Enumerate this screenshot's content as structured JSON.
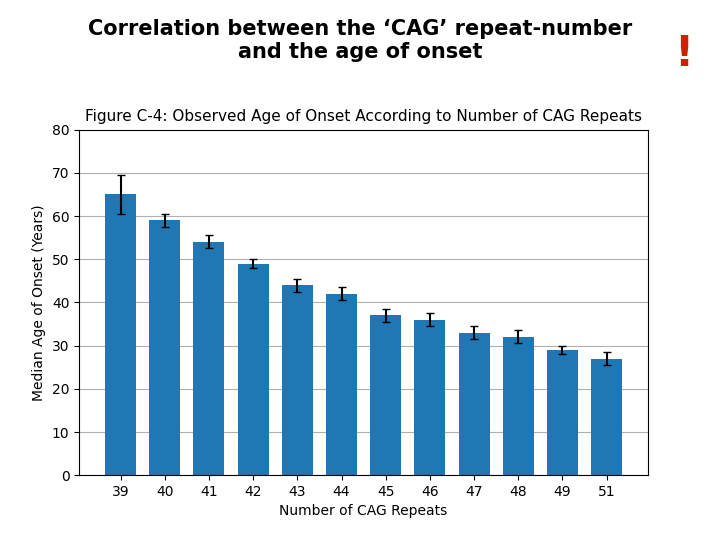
{
  "chart_data": {
    "type": "bar",
    "title": "Correlation between the ‘CAG’ repeat-number\nand the age of onset",
    "subtitle": "Figure C-4: Observed Age of Onset According to Number of CAG Repeats",
    "x_label": "Number of CAG Repeats",
    "y_label": "Median Age of Onset (Years)",
    "categories": [
      "39",
      "40",
      "41",
      "42",
      "43",
      "44",
      "45",
      "46",
      "47",
      "48",
      "49",
      "51"
    ],
    "values": [
      65,
      59,
      54,
      49,
      44,
      42,
      37,
      36,
      33,
      32,
      29,
      27
    ],
    "errors": [
      4.5,
      1.5,
      1.5,
      1.0,
      1.5,
      1.5,
      1.5,
      1.5,
      1.5,
      1.5,
      1.0,
      1.5
    ],
    "ylim": [
      0,
      80
    ],
    "yticks": [
      0,
      10,
      20,
      30,
      40,
      50,
      60,
      70,
      80
    ],
    "grid": true,
    "annotations": [
      "!"
    ]
  }
}
